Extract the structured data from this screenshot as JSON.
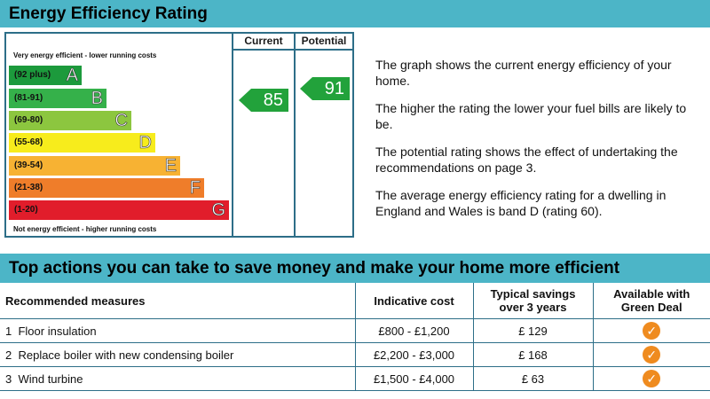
{
  "header": {
    "title": "Energy Efficiency Rating"
  },
  "chart": {
    "col_current": "Current",
    "col_potential": "Potential",
    "top_note": "Very energy efficient - lower running costs",
    "bottom_note": "Not energy efficient - higher running costs",
    "bands": [
      {
        "range": "(92 plus)",
        "letter": "A",
        "color": "#1c9a3c"
      },
      {
        "range": "(81-91)",
        "letter": "B",
        "color": "#35b14a"
      },
      {
        "range": "(69-80)",
        "letter": "C",
        "color": "#8cc63f"
      },
      {
        "range": "(55-68)",
        "letter": "D",
        "color": "#f7ec1c"
      },
      {
        "range": "(39-54)",
        "letter": "E",
        "color": "#f7b233"
      },
      {
        "range": "(21-38)",
        "letter": "F",
        "color": "#ef7d2a"
      },
      {
        "range": "(1-20)",
        "letter": "G",
        "color": "#e11d2b"
      }
    ],
    "current_value": "85",
    "potential_value": "91",
    "arrow_color": "#22a23b"
  },
  "description": {
    "p1": "The graph shows the current energy efficiency of your home.",
    "p2": "The higher the rating the lower your fuel bills are likely to be.",
    "p3": "The potential rating shows the effect of undertaking the recommendations on page 3.",
    "p4": "The average energy efficiency rating for a dwelling in England and Wales is band D (rating 60)."
  },
  "actions": {
    "title": "Top actions you can take to save money and make your home more efficient",
    "headers": {
      "measures": "Recommended measures",
      "cost": "Indicative cost",
      "savings_line1": "Typical savings",
      "savings_line2": "over 3 years",
      "green_line1": "Available with",
      "green_line2": "Green Deal"
    },
    "rows": [
      {
        "num": "1",
        "measure": "Floor insulation",
        "cost": "£800 - £1,200",
        "savings": "£ 129",
        "green_deal_icon": "check-circle-icon"
      },
      {
        "num": "2",
        "measure": "Replace boiler with new condensing boiler",
        "cost": "£2,200 - £3,000",
        "savings": "£ 168",
        "green_deal_icon": "check-circle-icon"
      },
      {
        "num": "3",
        "measure": "Wind turbine",
        "cost": "£1,500 - £4,000",
        "savings": "£ 63",
        "green_deal_icon": "check-circle-icon"
      }
    ]
  }
}
